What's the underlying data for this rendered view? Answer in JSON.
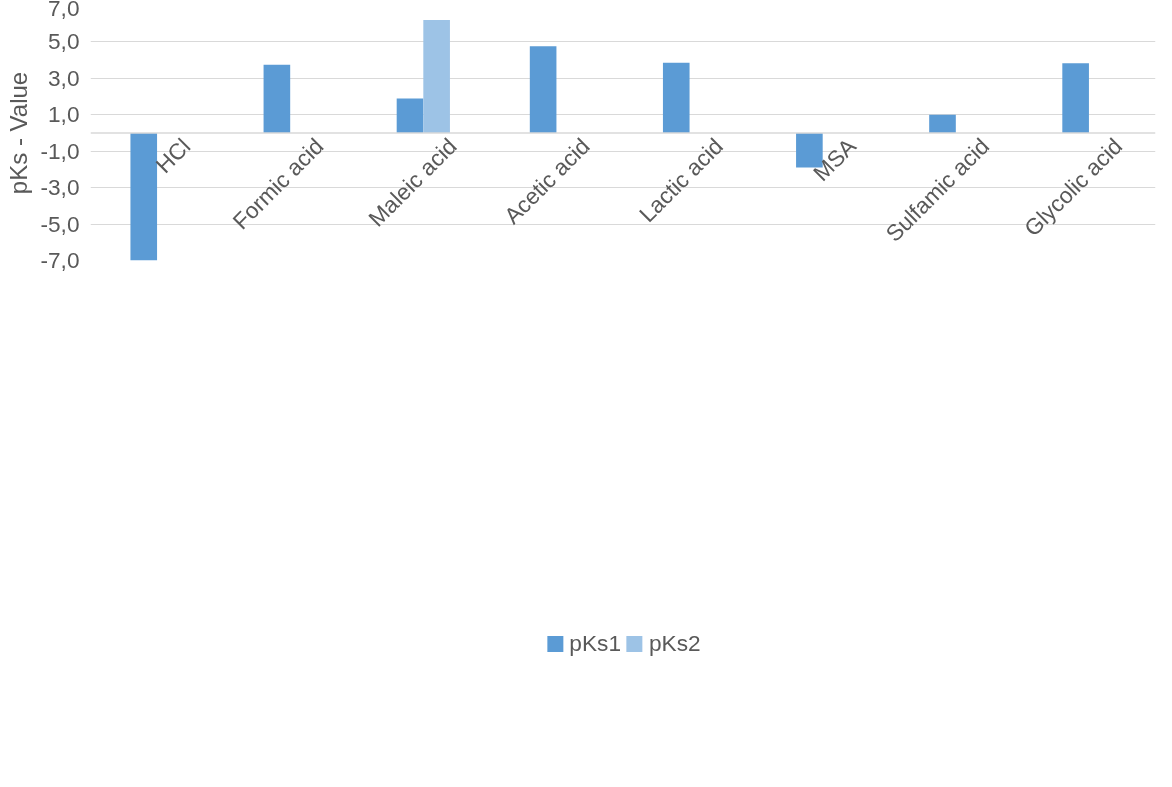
{
  "chart_data": {
    "type": "bar",
    "ylabel": "pKs - Value",
    "categories": [
      "HCl",
      "Formic acid",
      "Maleic acid",
      "Acetic acid",
      "Lactic acid",
      "MSA",
      "Sulfamic acid",
      "Glycolic acid"
    ],
    "series": [
      {
        "name": "pKs1",
        "color": "#5b9bd5",
        "values": [
          -7.0,
          3.75,
          1.9,
          4.76,
          3.86,
          -1.9,
          1.0,
          3.83
        ]
      },
      {
        "name": "pKs2",
        "color": "#9dc3e6",
        "values": [
          null,
          null,
          6.2,
          null,
          null,
          null,
          null,
          null
        ]
      }
    ],
    "ylim": [
      -7.0,
      7.0
    ],
    "yticks": [
      {
        "value": -7,
        "label": "-7,0"
      },
      {
        "value": -5,
        "label": "-5,0"
      },
      {
        "value": -3,
        "label": "-3,0"
      },
      {
        "value": -1,
        "label": "-1,0"
      },
      {
        "value": 1,
        "label": "1,0"
      },
      {
        "value": 3,
        "label": "3,0"
      },
      {
        "value": 5,
        "label": "5,0"
      },
      {
        "value": 7,
        "label": "7,0"
      }
    ],
    "grid": "y",
    "legend": "bottom"
  }
}
